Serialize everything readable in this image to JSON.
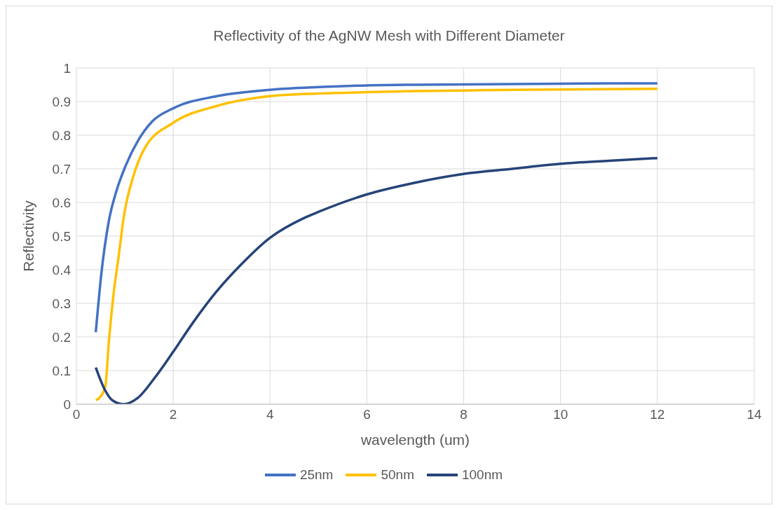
{
  "chart_data": {
    "type": "line",
    "title": "Reflectivity of the AgNW Mesh with Different Diameter",
    "xlabel": "wavelength (um)",
    "ylabel": "Reflectivity",
    "xlim": [
      0,
      14
    ],
    "xticks": [
      0,
      2,
      4,
      6,
      8,
      10,
      12,
      14
    ],
    "ylim": [
      0,
      1
    ],
    "yticks": [
      0,
      0.1,
      0.2,
      0.3,
      0.4,
      0.5,
      0.6,
      0.7,
      0.8,
      0.9,
      1
    ],
    "grid": true,
    "legend": "bottom",
    "series": [
      {
        "name": "25nm",
        "color": "#4472c4",
        "x": [
          0.4,
          0.52,
          0.67,
          0.82,
          1.02,
          1.27,
          1.56,
          2.0,
          2.9,
          4.0,
          5.0,
          6.0,
          7.0,
          8.0,
          9.0,
          10.0,
          11.0,
          12.0
        ],
        "values": [
          0.214,
          0.394,
          0.545,
          0.631,
          0.71,
          0.783,
          0.84,
          0.88,
          0.916,
          0.935,
          0.943,
          0.948,
          0.95,
          0.951,
          0.952,
          0.953,
          0.954,
          0.954
        ]
      },
      {
        "name": "50nm",
        "color": "#ffc000",
        "x": [
          0.4,
          0.52,
          0.6,
          0.67,
          0.77,
          0.87,
          0.99,
          1.17,
          1.41,
          2.0,
          2.9,
          4.0,
          5.0,
          6.0,
          7.0,
          8.0,
          9.0,
          10.0,
          11.0,
          12.0
        ],
        "values": [
          0.012,
          0.027,
          0.055,
          0.185,
          0.33,
          0.437,
          0.567,
          0.675,
          0.761,
          0.837,
          0.887,
          0.916,
          0.924,
          0.928,
          0.931,
          0.933,
          0.935,
          0.936,
          0.937,
          0.938
        ]
      },
      {
        "name": "100nm",
        "color": "#264478",
        "x": [
          0.4,
          0.57,
          0.74,
          0.97,
          1.27,
          1.61,
          2.0,
          2.41,
          2.9,
          3.4,
          4.0,
          4.69,
          5.0,
          6.0,
          7.0,
          8.0,
          9.0,
          10.0,
          11.0,
          12.0
        ],
        "values": [
          0.109,
          0.048,
          0.012,
          0.0,
          0.019,
          0.077,
          0.156,
          0.243,
          0.336,
          0.415,
          0.495,
          0.553,
          0.572,
          0.624,
          0.659,
          0.685,
          0.7,
          0.715,
          0.724,
          0.732
        ]
      }
    ]
  }
}
